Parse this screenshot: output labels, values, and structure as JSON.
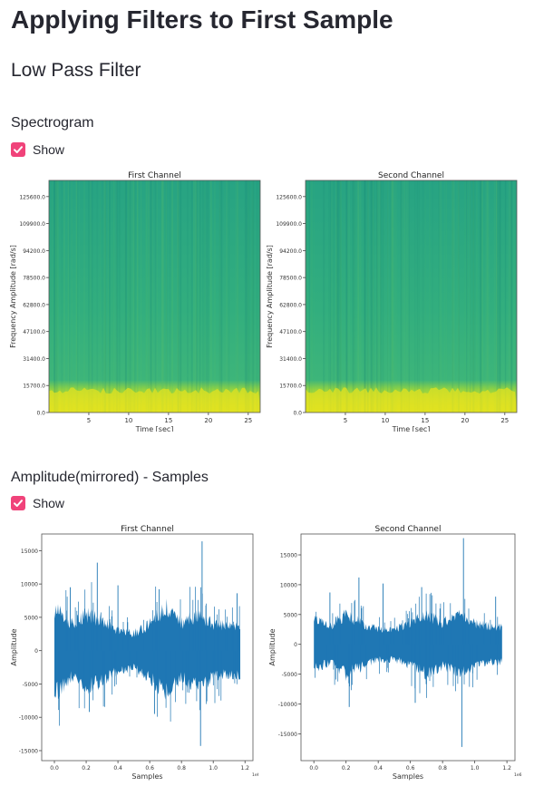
{
  "page": {
    "title": "Applying Filters to First Sample",
    "subtitle": "Low Pass Filter"
  },
  "spectrogram_section": {
    "label": "Spectrogram",
    "show_label": "Show",
    "show_checked": true
  },
  "amplitude_section": {
    "label": "Amplitude(mirrored) - Samples",
    "show_label": "Show",
    "show_checked": true
  },
  "colors": {
    "spec_top": "#27a383",
    "spec_mid": "#32ae7e",
    "spec_band": "#8fd244",
    "spec_base": "#e6e419",
    "waveform": "#1f77b4",
    "checkbox": "#f0437a"
  },
  "chart_data": [
    {
      "type": "heatmap",
      "title": "First Channel",
      "xlabel": "Time [sec]",
      "ylabel": "Frequency Amplitude [rad/s]",
      "x_ticks": [
        5,
        10,
        15,
        20,
        25
      ],
      "y_ticks": [
        "0.0",
        "15700.0",
        "31400.0",
        "47100.0",
        "62800.0",
        "78500.0",
        "94200.0",
        "109900.0",
        "125600.0"
      ],
      "xlim": [
        0,
        26.5
      ],
      "ylim": [
        0,
        135000
      ]
    },
    {
      "type": "heatmap",
      "title": "Second Channel",
      "xlabel": "Time [sec]",
      "ylabel": "Frequency Amplitude [rad/s]",
      "x_ticks": [
        5,
        10,
        15,
        20,
        25
      ],
      "y_ticks": [
        "0.0",
        "15700.0",
        "31400.0",
        "47100.0",
        "62800.0",
        "78500.0",
        "94200.0",
        "109900.0",
        "125600.0"
      ],
      "xlim": [
        0,
        26.5
      ],
      "ylim": [
        0,
        135000
      ]
    },
    {
      "type": "line",
      "title": "First Channel",
      "xlabel": "Samples",
      "ylabel": "Amplitude",
      "x_ticks": [
        "0.0",
        "0.2",
        "0.4",
        "0.6",
        "0.8",
        "1.0",
        "1.2"
      ],
      "x_multiplier": "1e6",
      "y_ticks": [
        "-15000",
        "-10000",
        "-5000",
        "0",
        "5000",
        "10000",
        "15000"
      ],
      "xlim": [
        -0.08,
        1.25
      ],
      "ylim": [
        -16500,
        17500
      ],
      "envelope": {
        "x": [
          0.0,
          0.1,
          0.2,
          0.3,
          0.4,
          0.5,
          0.6,
          0.7,
          0.8,
          0.9,
          1.0,
          1.1,
          1.17
        ],
        "upper": [
          6500,
          4000,
          5500,
          4500,
          3000,
          2500,
          4000,
          6500,
          4000,
          5500,
          4000,
          3500,
          3500
        ],
        "lower": [
          -6500,
          -4000,
          -5500,
          -4500,
          -3000,
          -2500,
          -4000,
          -6500,
          -4000,
          -5500,
          -4000,
          -3500,
          -3500
        ]
      },
      "spikes": [
        {
          "x": 0.1,
          "y": 9500
        },
        {
          "x": 0.27,
          "y": 13200
        },
        {
          "x": 0.4,
          "y": 9800
        },
        {
          "x": 0.66,
          "y": 9200
        },
        {
          "x": 0.93,
          "y": 16400
        },
        {
          "x": 1.15,
          "y": 8600
        },
        {
          "x": 0.22,
          "y": -9200
        },
        {
          "x": 0.63,
          "y": -9500
        },
        {
          "x": 0.92,
          "y": -14300
        }
      ]
    },
    {
      "type": "line",
      "title": "Second Channel",
      "xlabel": "Samples",
      "ylabel": "Amplitude",
      "x_ticks": [
        "0.0",
        "0.2",
        "0.4",
        "0.6",
        "0.8",
        "1.0",
        "1.2"
      ],
      "x_multiplier": "1e6",
      "y_ticks": [
        "-15000",
        "-10000",
        "-5000",
        "0",
        "5000",
        "10000",
        "15000"
      ],
      "xlim": [
        -0.08,
        1.25
      ],
      "ylim": [
        -19500,
        18500
      ],
      "envelope": {
        "x": [
          0.0,
          0.1,
          0.2,
          0.3,
          0.4,
          0.5,
          0.6,
          0.7,
          0.8,
          0.9,
          1.0,
          1.1,
          1.17
        ],
        "upper": [
          4000,
          3000,
          5000,
          3500,
          2500,
          2500,
          3500,
          5000,
          3500,
          5000,
          3500,
          3000,
          3000
        ],
        "lower": [
          -4000,
          -3000,
          -5000,
          -3500,
          -2500,
          -2500,
          -3500,
          -5000,
          -3500,
          -5000,
          -3500,
          -3000,
          -3000
        ]
      },
      "spikes": [
        {
          "x": 0.1,
          "y": 8700
        },
        {
          "x": 0.28,
          "y": 11200
        },
        {
          "x": 0.43,
          "y": 10200
        },
        {
          "x": 0.67,
          "y": 9600
        },
        {
          "x": 0.93,
          "y": 17800
        },
        {
          "x": 1.13,
          "y": 8000
        },
        {
          "x": 0.22,
          "y": -10500
        },
        {
          "x": 0.63,
          "y": -9800
        },
        {
          "x": 0.92,
          "y": -17200
        }
      ]
    }
  ]
}
